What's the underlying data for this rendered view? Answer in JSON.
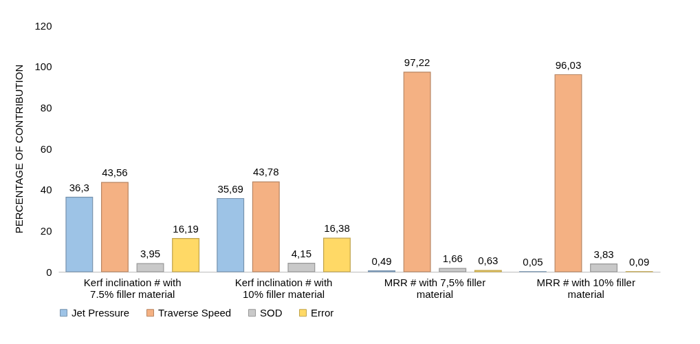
{
  "chart_data": {
    "type": "bar",
    "ylabel": "PERCENTAGE OF CONTRIBUTION",
    "categories": [
      "Kerf inclination # with 7.5% filler material",
      "Kerf inclination # with 10% filler material",
      "MRR # with 7,5% filler material",
      "MRR # with 10% filler material"
    ],
    "series": [
      {
        "name": "Jet Pressure",
        "color": "#9dc3e6",
        "values": [
          36.3,
          35.69,
          0.49,
          0.05
        ],
        "value_labels": [
          "36,3",
          "35,69",
          "0,49",
          "0,05"
        ]
      },
      {
        "name": "Traverse Speed",
        "color": "#f4b183",
        "values": [
          43.56,
          43.78,
          97.22,
          96.03
        ],
        "value_labels": [
          "43,56",
          "43,78",
          "97,22",
          "96,03"
        ]
      },
      {
        "name": "SOD",
        "color": "#c9c9c9",
        "values": [
          3.95,
          4.15,
          1.66,
          3.83
        ],
        "value_labels": [
          "3,95",
          "4,15",
          "1,66",
          "3,83"
        ]
      },
      {
        "name": "Error",
        "color": "#ffd966",
        "values": [
          16.19,
          16.38,
          0.63,
          0.09
        ],
        "value_labels": [
          "16,19",
          "16,38",
          "0,63",
          "0,09"
        ]
      }
    ],
    "ylim": [
      0,
      120
    ],
    "yticks": [
      0,
      20,
      40,
      60,
      80,
      100,
      120
    ],
    "grid": false,
    "legend": "bottom"
  }
}
